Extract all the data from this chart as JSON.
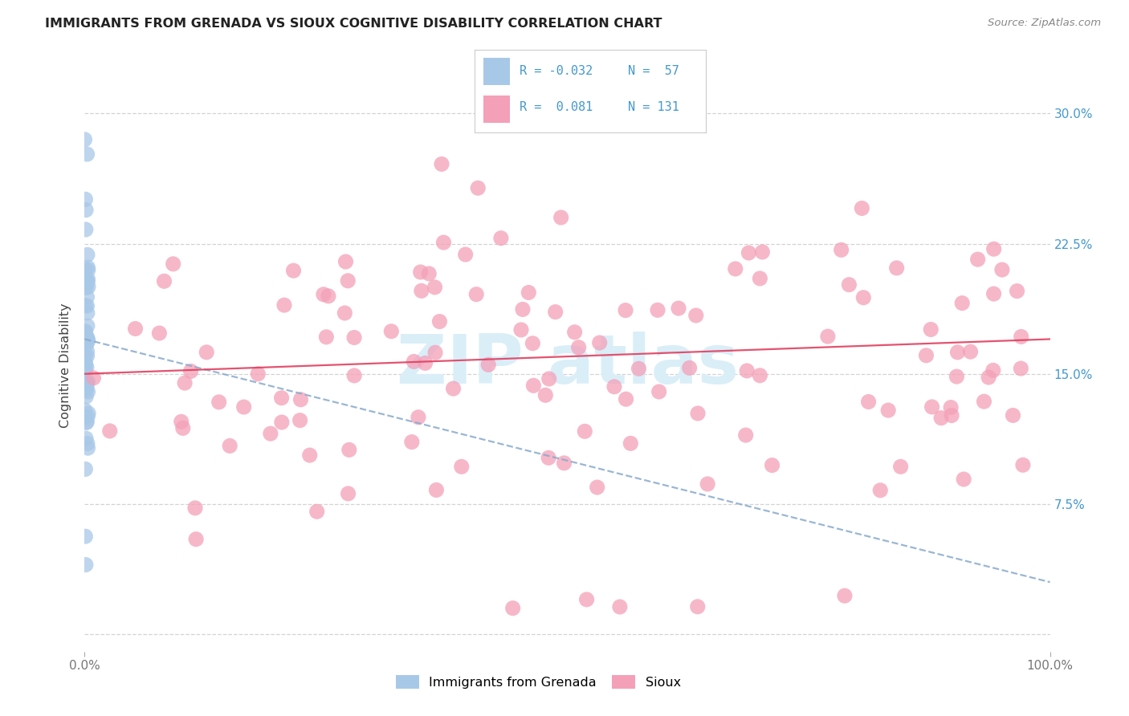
{
  "title": "IMMIGRANTS FROM GRENADA VS SIOUX COGNITIVE DISABILITY CORRELATION CHART",
  "source": "Source: ZipAtlas.com",
  "ylabel": "Cognitive Disability",
  "ytick_vals": [
    0.0,
    0.075,
    0.15,
    0.225,
    0.3
  ],
  "ytick_labels": [
    "",
    "7.5%",
    "15.0%",
    "22.5%",
    "30.0%"
  ],
  "xlim": [
    0.0,
    1.0
  ],
  "ylim": [
    -0.01,
    0.32
  ],
  "legend_label1": "Immigrants from Grenada",
  "legend_label2": "Sioux",
  "R1": -0.032,
  "N1": 57,
  "R2": 0.081,
  "N2": 131,
  "color_blue": "#a8c8e8",
  "color_pink": "#f4a0b8",
  "color_blue_line": "#88aacc",
  "color_pink_line": "#e04060",
  "background_color": "#ffffff",
  "grid_color": "#cccccc",
  "title_color": "#222222",
  "source_color": "#888888",
  "right_tick_color": "#4499cc",
  "watermark_color": "#daeef8",
  "blue_trend_start_y": 0.17,
  "blue_trend_end_y": 0.03,
  "pink_trend_start_y": 0.15,
  "pink_trend_end_y": 0.17
}
